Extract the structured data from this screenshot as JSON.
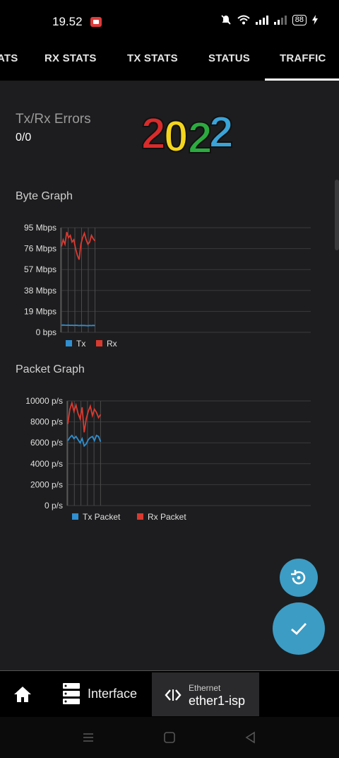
{
  "status_bar": {
    "time": "19.52",
    "battery": "88"
  },
  "tabs": [
    {
      "label": "ATS"
    },
    {
      "label": "RX STATS"
    },
    {
      "label": "TX STATS"
    },
    {
      "label": "STATUS"
    },
    {
      "label": "TRAFFIC"
    }
  ],
  "active_tab": "TRAFFIC",
  "errors": {
    "title": "Tx/Rx Errors",
    "value": "0/0"
  },
  "logo_text": "2022",
  "byte_graph": {
    "title": "Byte Graph"
  },
  "packet_graph": {
    "title": "Packet Graph"
  },
  "colors": {
    "tx": "#2f8fd0",
    "rx": "#d93a30",
    "accent": "#3c9cc4"
  },
  "chart_data": [
    {
      "type": "line",
      "title": "Byte Graph",
      "y_tick_labels": [
        "95 Mbps",
        "76 Mbps",
        "57 Mbps",
        "38 Mbps",
        "19 Mbps",
        "0 bps"
      ],
      "ylim": [
        0,
        95
      ],
      "y_unit": "Mbps",
      "legend": [
        "Tx",
        "Rx"
      ],
      "legend_position": "bottom-left",
      "grid": true,
      "series": [
        {
          "name": "Tx",
          "values": [
            6.5,
            6.6,
            6.5,
            6.4,
            6.5,
            6.3,
            6.4,
            6.2,
            6.4,
            6.3,
            6.1,
            6.3,
            6.2,
            6.2,
            6.1,
            6.0,
            6.2,
            6.1,
            6.3,
            6.1
          ]
        },
        {
          "name": "Rx",
          "values": [
            78,
            84,
            80,
            91,
            86,
            88,
            82,
            84,
            76,
            70,
            66,
            80,
            86,
            90,
            84,
            80,
            82,
            88,
            85,
            83
          ]
        }
      ]
    },
    {
      "type": "line",
      "title": "Packet Graph",
      "y_tick_labels": [
        "10000 p/s",
        "8000 p/s",
        "6000 p/s",
        "4000 p/s",
        "2000 p/s",
        "0 p/s"
      ],
      "ylim": [
        0,
        10000
      ],
      "y_unit": "p/s",
      "legend": [
        "Tx Packet",
        "Rx Packet"
      ],
      "legend_position": "bottom-left",
      "grid": true,
      "series": [
        {
          "name": "Tx Packet",
          "values": [
            6200,
            6500,
            6700,
            6400,
            6600,
            6300,
            6000,
            6400,
            5700,
            5900,
            6300,
            6500,
            6600,
            6200,
            6700,
            6600,
            6100
          ]
        },
        {
          "name": "Rx Packet",
          "values": [
            7800,
            9200,
            9800,
            9000,
            9600,
            8800,
            8300,
            9400,
            7000,
            8300,
            9000,
            9500,
            8600,
            9200,
            8900,
            8400,
            8700
          ]
        }
      ]
    }
  ],
  "bottom_bar": {
    "home_icon": "home-icon",
    "interface_label": "Interface",
    "ethernet_small": "Ethernet",
    "ethernet_name": "ether1-isp"
  }
}
